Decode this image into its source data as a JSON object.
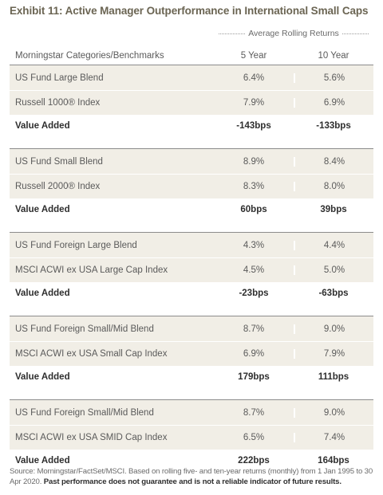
{
  "title": "Exhibit 11: Active Manager Outperformance in International Small Caps",
  "group_header": "Average Rolling Returns",
  "columns": {
    "label": "Morningstar Categories/Benchmarks",
    "col1": "5 Year",
    "col2": "10 Year"
  },
  "groups": [
    {
      "rows": [
        {
          "label": "US Fund Large Blend",
          "y5": "6.4%",
          "y10": "5.6%"
        },
        {
          "label": "Russell 1000® Index",
          "y5": "7.9%",
          "y10": "6.9%"
        }
      ],
      "value_added": {
        "label": "Value Added",
        "y5": "-143bps",
        "y10": "-133bps"
      }
    },
    {
      "rows": [
        {
          "label": "US Fund Small Blend",
          "y5": "8.9%",
          "y10": "8.4%"
        },
        {
          "label": "Russell 2000® Index",
          "y5": "8.3%",
          "y10": "8.0%"
        }
      ],
      "value_added": {
        "label": "Value Added",
        "y5": "60bps",
        "y10": "39bps"
      }
    },
    {
      "rows": [
        {
          "label": "US Fund Foreign Large Blend",
          "y5": "4.3%",
          "y10": "4.4%"
        },
        {
          "label": "MSCI ACWI ex USA Large Cap Index",
          "y5": "4.5%",
          "y10": "5.0%"
        }
      ],
      "value_added": {
        "label": "Value Added",
        "y5": "-23bps",
        "y10": "-63bps"
      }
    },
    {
      "rows": [
        {
          "label": "US Fund Foreign Small/Mid Blend",
          "y5": "8.7%",
          "y10": "9.0%"
        },
        {
          "label": "MSCI ACWI ex USA Small Cap Index",
          "y5": "6.9%",
          "y10": "7.9%"
        }
      ],
      "value_added": {
        "label": "Value Added",
        "y5": "179bps",
        "y10": "111bps"
      }
    },
    {
      "rows": [
        {
          "label": "US Fund Foreign Small/Mid Blend",
          "y5": "8.7%",
          "y10": "9.0%"
        },
        {
          "label": "MSCI ACWI ex USA SMID Cap Index",
          "y5": "6.5%",
          "y10": "7.4%"
        }
      ],
      "value_added": {
        "label": "Value Added",
        "y5": "222bps",
        "y10": "164bps"
      }
    }
  ],
  "source": {
    "text": "Source: Morningstar/FactSet/MSCI. Based on rolling five- and ten-year returns (monthly) from 1 Jan 1995 to 30 Apr 2020.",
    "disclaimer": "Past performance does not guarantee and is not a reliable indicator of future results."
  },
  "colors": {
    "title": "#6b6553",
    "row_shade": "#f1eee6",
    "rule": "#8c8c8c"
  }
}
